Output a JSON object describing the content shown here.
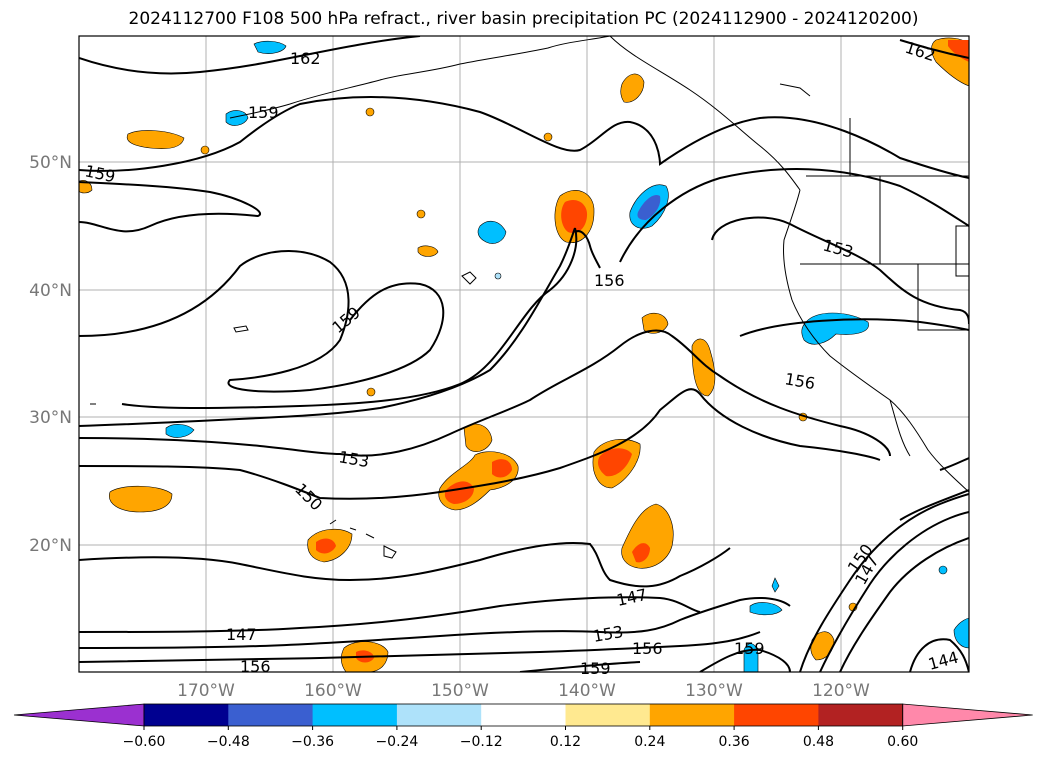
{
  "title": "2024112700 F108 500 hPa refract., river basin precipitation PC (2024112900 - 2024120200)",
  "map": {
    "lat_labels": [
      "50°N",
      "40°N",
      "30°N",
      "20°N"
    ],
    "lon_labels": [
      "170°W",
      "160°W",
      "150°W",
      "140°W",
      "130°W",
      "120°W"
    ],
    "contour_labels": [
      "162",
      "162",
      "159",
      "159",
      "159",
      "159",
      "156",
      "156",
      "156",
      "156",
      "153",
      "153",
      "150",
      "150",
      "147",
      "147",
      "147",
      "144",
      "159"
    ]
  },
  "colorbar": {
    "colors": [
      "#9b30d0",
      "#000090",
      "#3a5fd0",
      "#00bfff",
      "#aee2fa",
      "#ffffff",
      "#ffe990",
      "#ffa500",
      "#ff4500",
      "#b22222",
      "#ff88aa"
    ],
    "tick_labels": [
      "−0.60",
      "−0.48",
      "−0.36",
      "−0.24",
      "−0.12",
      "0.12",
      "0.24",
      "0.36",
      "0.48",
      "0.60"
    ]
  }
}
